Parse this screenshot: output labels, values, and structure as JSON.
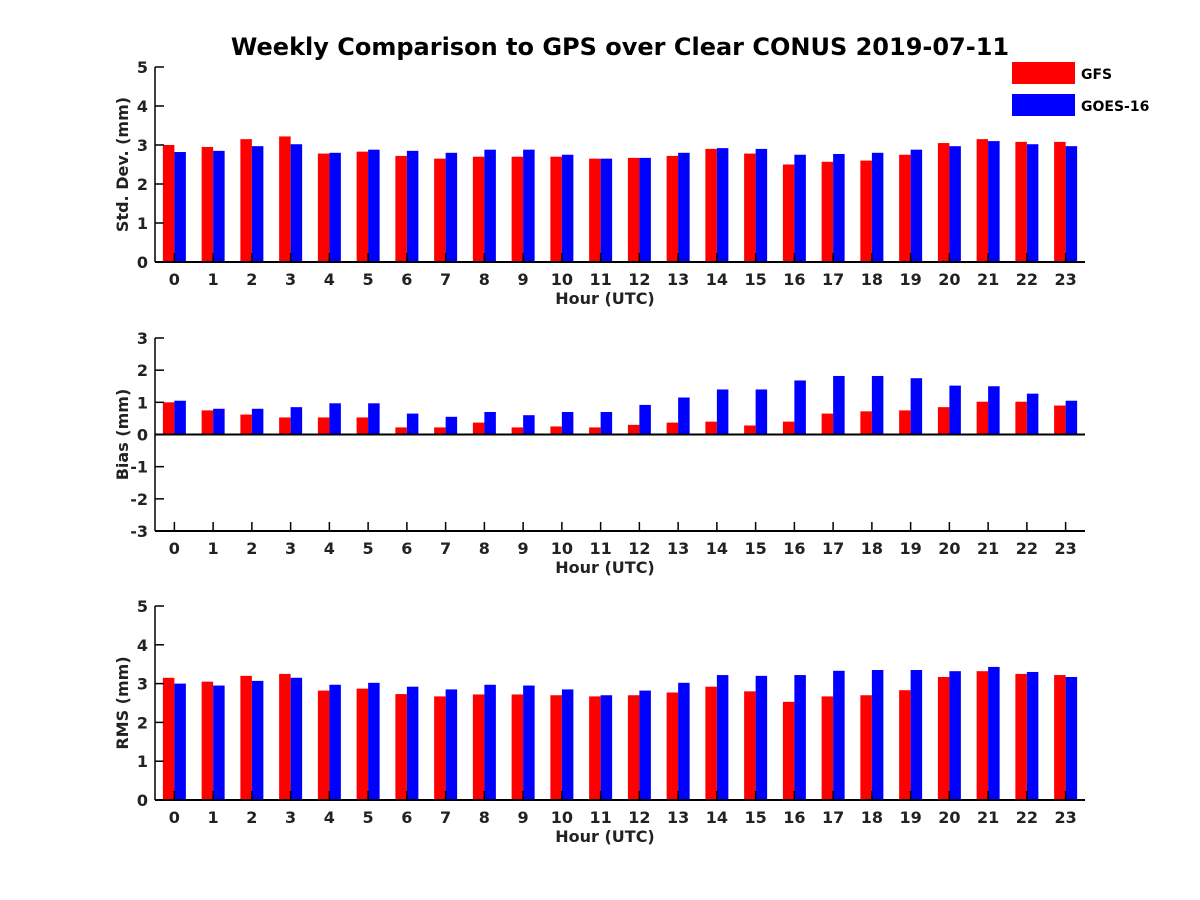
{
  "title": "Weekly Comparison to GPS over Clear CONUS 2019-07-11",
  "colors": {
    "GFS": "#ff0000",
    "GOES-16": "#0000ff",
    "axis": "#000000"
  },
  "legend": {
    "placement": "top-right",
    "items": [
      "GFS",
      "GOES-16"
    ]
  },
  "chart_data": [
    {
      "type": "bar",
      "xlabel": "Hour (UTC)",
      "ylabel": "Std. Dev. (mm)",
      "ylim": [
        0,
        5
      ],
      "yticks": [
        0,
        1,
        2,
        3,
        4,
        5
      ],
      "categories": [
        "0",
        "1",
        "2",
        "3",
        "4",
        "5",
        "6",
        "7",
        "8",
        "9",
        "10",
        "11",
        "12",
        "13",
        "14",
        "15",
        "16",
        "17",
        "18",
        "19",
        "20",
        "21",
        "22",
        "23"
      ],
      "series": [
        {
          "name": "GFS",
          "values": [
            3.0,
            2.95,
            3.15,
            3.22,
            2.78,
            2.83,
            2.72,
            2.65,
            2.7,
            2.7,
            2.7,
            2.65,
            2.67,
            2.72,
            2.9,
            2.78,
            2.5,
            2.57,
            2.6,
            2.75,
            3.05,
            3.15,
            3.08,
            3.08
          ]
        },
        {
          "name": "GOES-16",
          "values": [
            2.82,
            2.85,
            2.97,
            3.02,
            2.8,
            2.88,
            2.85,
            2.8,
            2.88,
            2.88,
            2.75,
            2.65,
            2.67,
            2.8,
            2.92,
            2.9,
            2.75,
            2.77,
            2.8,
            2.88,
            2.97,
            3.1,
            3.02,
            2.97
          ]
        }
      ]
    },
    {
      "type": "bar",
      "xlabel": "Hour (UTC)",
      "ylabel": "Bias (mm)",
      "ylim": [
        -3,
        3
      ],
      "yticks": [
        -3,
        -2,
        -1,
        0,
        1,
        2,
        3
      ],
      "categories": [
        "0",
        "1",
        "2",
        "3",
        "4",
        "5",
        "6",
        "7",
        "8",
        "9",
        "10",
        "11",
        "12",
        "13",
        "14",
        "15",
        "16",
        "17",
        "18",
        "19",
        "20",
        "21",
        "22",
        "23"
      ],
      "series": [
        {
          "name": "GFS",
          "values": [
            1.0,
            0.75,
            0.62,
            0.53,
            0.53,
            0.53,
            0.22,
            0.22,
            0.37,
            0.22,
            0.25,
            0.22,
            0.3,
            0.37,
            0.4,
            0.28,
            0.4,
            0.65,
            0.72,
            0.75,
            0.85,
            1.02,
            1.02,
            0.9
          ]
        },
        {
          "name": "GOES-16",
          "values": [
            1.05,
            0.8,
            0.8,
            0.85,
            0.97,
            0.97,
            0.65,
            0.55,
            0.7,
            0.6,
            0.7,
            0.7,
            0.92,
            1.15,
            1.4,
            1.4,
            1.68,
            1.82,
            1.82,
            1.75,
            1.52,
            1.5,
            1.27,
            1.05
          ]
        }
      ]
    },
    {
      "type": "bar",
      "xlabel": "Hour (UTC)",
      "ylabel": "RMS (mm)",
      "ylim": [
        0,
        5
      ],
      "yticks": [
        0,
        1,
        2,
        3,
        4,
        5
      ],
      "categories": [
        "0",
        "1",
        "2",
        "3",
        "4",
        "5",
        "6",
        "7",
        "8",
        "9",
        "10",
        "11",
        "12",
        "13",
        "14",
        "15",
        "16",
        "17",
        "18",
        "19",
        "20",
        "21",
        "22",
        "23"
      ],
      "series": [
        {
          "name": "GFS",
          "values": [
            3.15,
            3.05,
            3.2,
            3.25,
            2.82,
            2.87,
            2.73,
            2.67,
            2.72,
            2.72,
            2.7,
            2.67,
            2.7,
            2.77,
            2.92,
            2.8,
            2.53,
            2.67,
            2.7,
            2.83,
            3.17,
            3.32,
            3.25,
            3.22
          ]
        },
        {
          "name": "GOES-16",
          "values": [
            3.0,
            2.95,
            3.07,
            3.15,
            2.97,
            3.02,
            2.92,
            2.85,
            2.97,
            2.95,
            2.85,
            2.7,
            2.82,
            3.02,
            3.22,
            3.2,
            3.22,
            3.33,
            3.35,
            3.35,
            3.32,
            3.43,
            3.3,
            3.17
          ]
        }
      ]
    }
  ]
}
